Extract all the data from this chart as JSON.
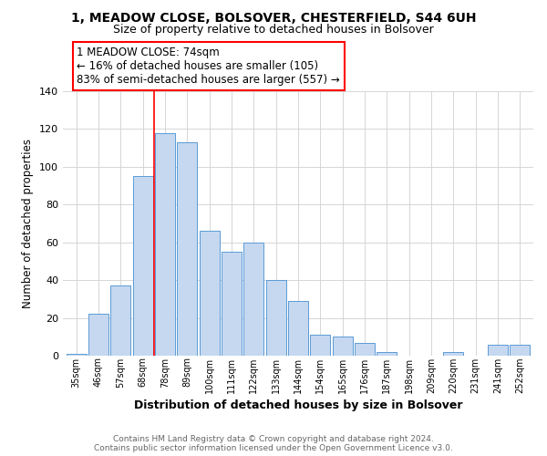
{
  "title_line1": "1, MEADOW CLOSE, BOLSOVER, CHESTERFIELD, S44 6UH",
  "title_line2": "Size of property relative to detached houses in Bolsover",
  "xlabel": "Distribution of detached houses by size in Bolsover",
  "ylabel": "Number of detached properties",
  "bar_labels": [
    "35sqm",
    "46sqm",
    "57sqm",
    "68sqm",
    "78sqm",
    "89sqm",
    "100sqm",
    "111sqm",
    "122sqm",
    "133sqm",
    "144sqm",
    "154sqm",
    "165sqm",
    "176sqm",
    "187sqm",
    "198sqm",
    "209sqm",
    "220sqm",
    "231sqm",
    "241sqm",
    "252sqm"
  ],
  "bar_heights": [
    1,
    22,
    37,
    95,
    118,
    113,
    66,
    55,
    60,
    40,
    29,
    11,
    10,
    7,
    2,
    0,
    0,
    2,
    0,
    6,
    6
  ],
  "bar_color": "#c5d8f0",
  "bar_edge_color": "#5b9bd5",
  "annotation_text": "1 MEADOW CLOSE: 74sqm\n← 16% of detached houses are smaller (105)\n83% of semi-detached houses are larger (557) →",
  "annotation_box_color": "white",
  "annotation_box_edge_color": "red",
  "vline_x": 3.5,
  "vline_color": "red",
  "ylim": [
    0,
    140
  ],
  "yticks": [
    0,
    20,
    40,
    60,
    80,
    100,
    120,
    140
  ],
  "footer_line1": "Contains HM Land Registry data © Crown copyright and database right 2024.",
  "footer_line2": "Contains public sector information licensed under the Open Government Licence v3.0.",
  "background_color": "#ffffff",
  "grid_color": "#d0d0d0"
}
